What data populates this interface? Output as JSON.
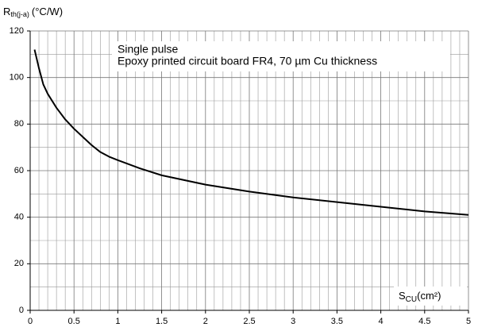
{
  "chart_data": {
    "type": "line",
    "y_label": {
      "symbol": "R",
      "subscript": "th(j-a)",
      "unit": "(°C/W)"
    },
    "x_label": {
      "symbol": "S",
      "subscript": "CU",
      "unit": "(cm²)"
    },
    "annotations": [
      "Single pulse",
      "Epoxy printed circuit board FR4, 70 µm Cu thickness"
    ],
    "x": [
      0.05,
      0.1,
      0.15,
      0.2,
      0.3,
      0.4,
      0.5,
      0.6,
      0.7,
      0.8,
      0.9,
      1,
      1.25,
      1.5,
      2,
      2.5,
      3,
      3.5,
      4,
      4.5,
      5
    ],
    "series": [
      {
        "color": "#000000",
        "values": [
          112,
          104,
          97,
          93,
          87,
          82,
          78,
          74.5,
          71,
          68,
          66,
          64.5,
          61,
          58,
          54,
          51,
          48.5,
          46.5,
          44.5,
          42.5,
          41
        ]
      }
    ],
    "xlim": [
      0,
      5
    ],
    "ylim": [
      0,
      120
    ],
    "xticks": [
      0,
      0.5,
      1,
      1.5,
      2,
      2.5,
      3,
      3.5,
      4,
      4.5,
      5
    ],
    "yticks": [
      0,
      20,
      40,
      60,
      80,
      100,
      120
    ],
    "grid": true,
    "minor_grid_divisions": [
      5,
      2
    ]
  }
}
